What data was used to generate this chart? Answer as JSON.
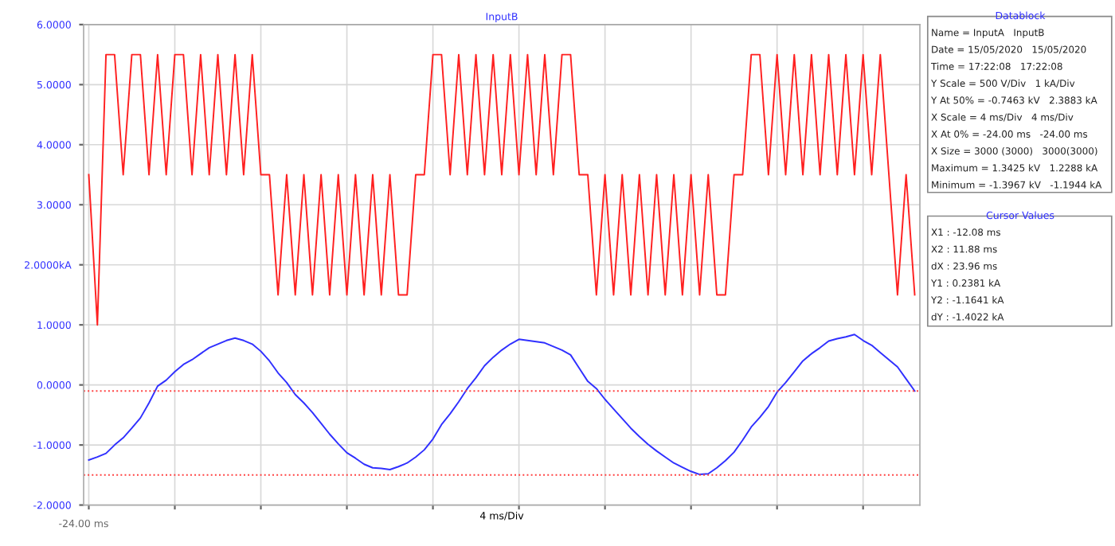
{
  "chart_data": {
    "type": "line",
    "title": "InputB",
    "xlabel": "4 ms/Div",
    "ylim": [
      -2,
      6
    ],
    "yticks": [
      {
        "value": 6,
        "label": "6.0000"
      },
      {
        "value": 5,
        "label": "5.0000"
      },
      {
        "value": 4,
        "label": "4.0000"
      },
      {
        "value": 3,
        "label": "3.0000"
      },
      {
        "value": 2,
        "label": "2.0000kA"
      },
      {
        "value": 1,
        "label": "1.0000"
      },
      {
        "value": 0,
        "label": "0.0000"
      },
      {
        "value": -1,
        "label": "-1.0000"
      },
      {
        "value": -2,
        "label": "-2.0000"
      }
    ],
    "grid": true,
    "marker": "none",
    "line_style": "solid",
    "categories": [
      null,
      null,
      null,
      null,
      null,
      null,
      null,
      null,
      null,
      null,
      null,
      null,
      null,
      null,
      null,
      null,
      null,
      null,
      null,
      null,
      null,
      null,
      null,
      null,
      null,
      null,
      null,
      null,
      null,
      null,
      null,
      null,
      null,
      null,
      null,
      null,
      null,
      null,
      null,
      null,
      null,
      null,
      null,
      null,
      null,
      null,
      null,
      null,
      null,
      null,
      null,
      null,
      null,
      null,
      null,
      null,
      null,
      null,
      null,
      null,
      null,
      null,
      null,
      null,
      null,
      null,
      null,
      null,
      null,
      null,
      null,
      null,
      null,
      null,
      null,
      null,
      null,
      null,
      null,
      null,
      null,
      null,
      null,
      null,
      null,
      null,
      null,
      null,
      null,
      null,
      null,
      null,
      null,
      null,
      null,
      null,
      null
    ],
    "series": [
      {
        "color": "#ff2020",
        "values": [
          3.5,
          1.0,
          5.5,
          5.5,
          3.5,
          5.5,
          5.5,
          3.5,
          5.5,
          3.5,
          5.5,
          5.5,
          3.5,
          5.5,
          3.5,
          5.5,
          3.5,
          5.5,
          3.5,
          5.5,
          3.5,
          3.5,
          1.5,
          3.5,
          1.5,
          3.5,
          1.5,
          3.5,
          1.5,
          3.5,
          1.5,
          3.5,
          1.5,
          3.5,
          1.5,
          3.5,
          1.5,
          1.5,
          3.5,
          3.5,
          5.5,
          5.5,
          3.5,
          5.5,
          3.5,
          5.5,
          3.5,
          5.5,
          3.5,
          5.5,
          3.5,
          5.5,
          3.5,
          5.5,
          3.5,
          5.5,
          5.5,
          3.5,
          3.5,
          1.5,
          3.5,
          1.5,
          3.5,
          1.5,
          3.5,
          1.5,
          3.5,
          1.5,
          3.5,
          1.5,
          3.5,
          1.5,
          3.5,
          1.5,
          1.5,
          3.5,
          3.5,
          5.5,
          5.5,
          3.5,
          5.5,
          3.5,
          5.5,
          3.5,
          5.5,
          3.5,
          5.5,
          3.5,
          5.5,
          3.5,
          5.5,
          3.5,
          5.5,
          3.5,
          1.5,
          3.5,
          1.5
        ]
      },
      {
        "color": "#3030ff",
        "values": [
          -1.25,
          -1.2,
          -1.14,
          -1.0,
          -0.88,
          -0.72,
          -0.55,
          -0.3,
          -0.02,
          0.08,
          0.22,
          0.34,
          0.42,
          0.52,
          0.62,
          0.68,
          0.74,
          0.78,
          0.74,
          0.68,
          0.56,
          0.4,
          0.2,
          0.04,
          -0.16,
          -0.3,
          -0.46,
          -0.64,
          -0.82,
          -0.98,
          -1.13,
          -1.22,
          -1.32,
          -1.38,
          -1.39,
          -1.41,
          -1.36,
          -1.3,
          -1.2,
          -1.08,
          -0.9,
          -0.66,
          -0.48,
          -0.28,
          -0.06,
          0.12,
          0.32,
          0.46,
          0.58,
          0.68,
          0.76,
          0.74,
          0.72,
          0.7,
          0.64,
          0.58,
          0.5,
          0.28,
          0.06,
          -0.06,
          -0.24,
          -0.4,
          -0.56,
          -0.72,
          -0.86,
          -0.99,
          -1.1,
          -1.2,
          -1.3,
          -1.37,
          -1.44,
          -1.49,
          -1.48,
          -1.38,
          -1.26,
          -1.12,
          -0.92,
          -0.7,
          -0.54,
          -0.36,
          -0.12,
          0.04,
          0.22,
          0.4,
          0.52,
          0.62,
          0.73,
          0.77,
          0.8,
          0.84,
          0.74,
          0.66,
          0.54,
          0.42,
          0.3,
          0.1,
          -0.1
        ]
      }
    ],
    "ref_lines": [
      {
        "axis": "y",
        "value": -0.1,
        "label": null,
        "color": "#ff4040",
        "line_style": "dotted"
      },
      {
        "axis": "y",
        "value": -1.5,
        "label": null,
        "color": "#ff4040",
        "line_style": "dotted"
      }
    ],
    "annotations": [
      "Datablock",
      "Name = InputA   InputB",
      "Date = 15/05/2020   15/05/2020",
      "Time = 17:22:08   17:22:08",
      "Y Scale = 500 V/Div   1 kA/Div",
      "Y At 50% = -0.7463 kV   2.3883 kA",
      "X Scale = 4 ms/Div   4 ms/Div",
      "X At 0% = -24.00 ms   -24.00 ms",
      "X Size = 3000 (3000)   3000(3000)",
      "Maximum = 1.3425 kV   1.2288 kA",
      "Minimum = -1.3967 kV   -1.1944 kA",
      "Cursor Values",
      "X1 : -12.08 ms",
      "X2 : 11.88 ms",
      "dX : 23.96 ms",
      "Y1 : 0.2381 kA",
      "Y2 : -1.1641 kA",
      "dY : -1.4022 kA",
      "-24.00 ms"
    ]
  }
}
